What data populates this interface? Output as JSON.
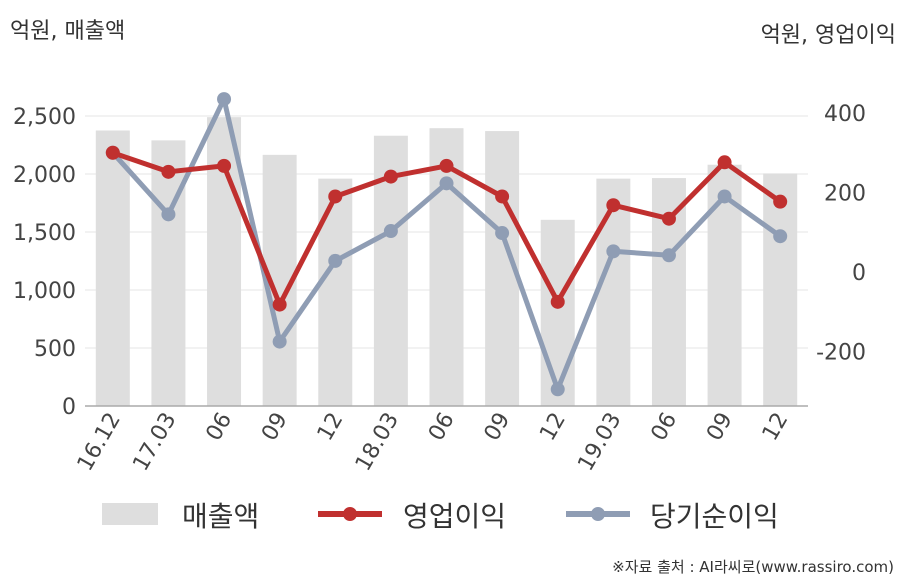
{
  "chart_data": {
    "type": "bar+line",
    "categories": [
      "16.12",
      "17.03",
      "06",
      "09",
      "12",
      "18.03",
      "06",
      "09",
      "12",
      "19.03",
      "06",
      "09",
      "12"
    ],
    "left_axis": {
      "label": "억원, 매출액",
      "range": [
        0,
        2700
      ],
      "ticks": [
        0,
        500,
        1000,
        1500,
        2000,
        2500
      ],
      "tick_labels": [
        "0",
        "500",
        "1,000",
        "1,500",
        "2,000",
        "2,500"
      ]
    },
    "right_axis": {
      "label": "억원, 영업이익",
      "range": [
        -340,
        400
      ],
      "ticks": [
        -200,
        0,
        200,
        400
      ],
      "tick_labels": [
        "-200",
        "0",
        "200",
        "400"
      ]
    },
    "series": [
      {
        "name": "매출액",
        "type": "bar",
        "axis": "left",
        "color": "#dedede",
        "values": [
          2375,
          2290,
          2490,
          2165,
          1960,
          2330,
          2395,
          2370,
          1605,
          1960,
          1965,
          2080,
          2005
        ]
      },
      {
        "name": "영업이익",
        "type": "line",
        "axis": "right",
        "color": "#c0302f",
        "values": [
          300,
          252,
          267,
          -82,
          190,
          240,
          267,
          190,
          -75,
          168,
          134,
          276,
          177
        ]
      },
      {
        "name": "당기순이익",
        "type": "line",
        "axis": "right",
        "color": "#8f9db4",
        "values": [
          300,
          145,
          435,
          -175,
          28,
          103,
          223,
          98,
          -295,
          52,
          42,
          190,
          90
        ]
      }
    ],
    "legend_position": "bottom",
    "grid": true
  },
  "source_note": "※자료 출처 : AI라씨로(www.rassiro.com)"
}
